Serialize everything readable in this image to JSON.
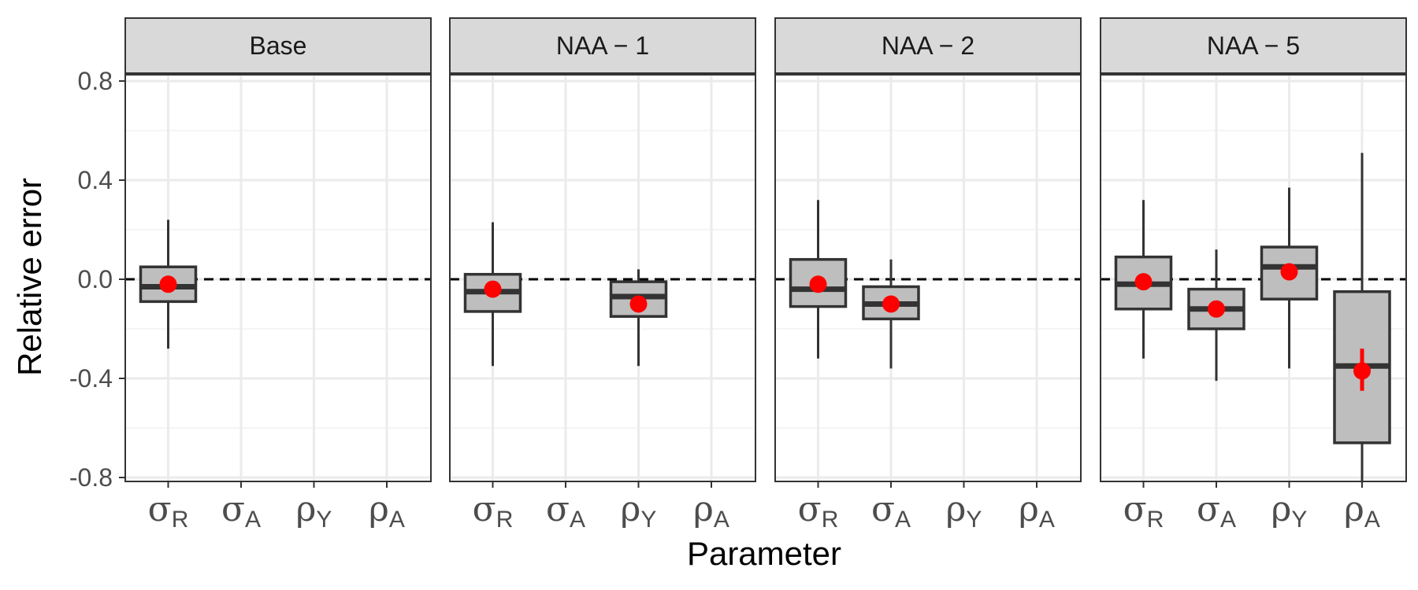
{
  "chart_data": {
    "type": "boxplot",
    "ylabel": "Relative error",
    "xlabel": "Parameter",
    "ylim": [
      -0.82,
      1.03
    ],
    "yticks": [
      0.8,
      0.4,
      0.0,
      -0.4,
      -0.8
    ],
    "ytick_labels": [
      "0.8",
      "0.4",
      "0.0",
      "-0.4",
      "-0.8"
    ],
    "reference_line": 0,
    "grid": true,
    "colors": {
      "box_fill": "#bebebe",
      "box_stroke": "#333333",
      "mean_point": "#ff0000",
      "strip_fill": "#d9d9d9"
    },
    "categories": [
      {
        "greek": "σ",
        "sub": "R"
      },
      {
        "greek": "σ",
        "sub": "A"
      },
      {
        "greek": "ρ",
        "sub": "Y"
      },
      {
        "greek": "ρ",
        "sub": "A"
      }
    ],
    "panels": [
      {
        "name": "Base",
        "boxes": [
          {
            "category": 0,
            "whisker_low": -0.28,
            "q1": -0.09,
            "median": -0.03,
            "q3": 0.05,
            "whisker_high": 0.24,
            "mean": -0.02
          }
        ]
      },
      {
        "name": "NAA − 1",
        "boxes": [
          {
            "category": 0,
            "whisker_low": -0.35,
            "q1": -0.13,
            "median": -0.05,
            "q3": 0.02,
            "whisker_high": 0.23,
            "mean": -0.04
          },
          {
            "category": 2,
            "whisker_low": -0.35,
            "q1": -0.15,
            "median": -0.07,
            "q3": -0.01,
            "whisker_high": 0.04,
            "mean": -0.1
          }
        ]
      },
      {
        "name": "NAA − 2",
        "boxes": [
          {
            "category": 0,
            "whisker_low": -0.32,
            "q1": -0.11,
            "median": -0.04,
            "q3": 0.08,
            "whisker_high": 0.32,
            "mean": -0.02
          },
          {
            "category": 1,
            "whisker_low": -0.36,
            "q1": -0.16,
            "median": -0.1,
            "q3": -0.03,
            "whisker_high": 0.08,
            "mean": -0.1
          }
        ]
      },
      {
        "name": "NAA − 5",
        "boxes": [
          {
            "category": 0,
            "whisker_low": -0.32,
            "q1": -0.12,
            "median": -0.02,
            "q3": 0.09,
            "whisker_high": 0.32,
            "mean": -0.01
          },
          {
            "category": 1,
            "whisker_low": -0.41,
            "q1": -0.2,
            "median": -0.12,
            "q3": -0.04,
            "whisker_high": 0.12,
            "mean": -0.12
          },
          {
            "category": 2,
            "whisker_low": -0.36,
            "q1": -0.08,
            "median": 0.05,
            "q3": 0.13,
            "whisker_high": 0.37,
            "mean": 0.03
          },
          {
            "category": 3,
            "whisker_low": -0.82,
            "q1": -0.66,
            "median": -0.35,
            "q3": -0.05,
            "whisker_high": 0.51,
            "mean": -0.37,
            "mean_err_low": -0.45,
            "mean_err_high": -0.28
          }
        ]
      }
    ]
  }
}
